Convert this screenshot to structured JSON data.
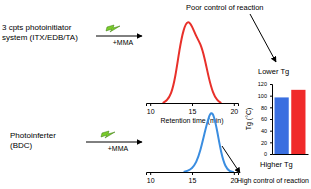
{
  "chart_data": [
    {
      "type": "line",
      "x_label": "Retention time (min)",
      "color": "#e8302a",
      "x": [
        11.5,
        12,
        12.5,
        13,
        13.5,
        14,
        14.5,
        15,
        15.5,
        16,
        16.5,
        17,
        17.5,
        18,
        18.5
      ],
      "values": [
        0,
        0.03,
        0.1,
        0.3,
        0.65,
        0.9,
        1.0,
        0.93,
        0.8,
        0.72,
        0.55,
        0.3,
        0.12,
        0.03,
        0
      ],
      "xlim": [
        9.5,
        20.5
      ],
      "xticks": [
        10,
        15,
        20
      ],
      "ylim": [
        0,
        1
      ],
      "tick_labels": "x"
    },
    {
      "type": "line",
      "color": "#3a8de0",
      "x": [
        14,
        14.5,
        15,
        15.5,
        16,
        16.5,
        17,
        17.3,
        17.6,
        18,
        18.5,
        19,
        19.5,
        20
      ],
      "values": [
        0,
        0.02,
        0.06,
        0.15,
        0.35,
        0.65,
        0.92,
        1.0,
        0.95,
        0.7,
        0.3,
        0.08,
        0.01,
        0
      ],
      "xlim": [
        9.5,
        20.5
      ],
      "xticks": [
        10,
        15,
        20
      ],
      "ylim": [
        0,
        1
      ],
      "tick_labels": "x"
    },
    {
      "type": "bar",
      "y_label": "Tg (°C)",
      "categories": [
        null,
        null
      ],
      "values": [
        97,
        110
      ],
      "colors": [
        "#3a6fe0",
        "#f02a2a"
      ],
      "ylim": [
        0,
        120
      ],
      "yticks": [
        0,
        20,
        40,
        60,
        80,
        100,
        120
      ],
      "tick_labels": "y"
    }
  ],
  "diagram": {
    "initiators": [
      {
        "lines": [
          "3 cpts photoinitiator",
          "system (ITX/EDB/TA)"
        ],
        "reagent": "+MMA"
      },
      {
        "lines": [
          "Photoinferter",
          "(BDC)"
        ],
        "reagent": "+MMA"
      }
    ],
    "labels": {
      "poor_control": "Poor control of reaction",
      "lower_tg": "Lower Tg",
      "high_control": "High control of reaction",
      "higher_tg": "Higher Tg"
    }
  }
}
